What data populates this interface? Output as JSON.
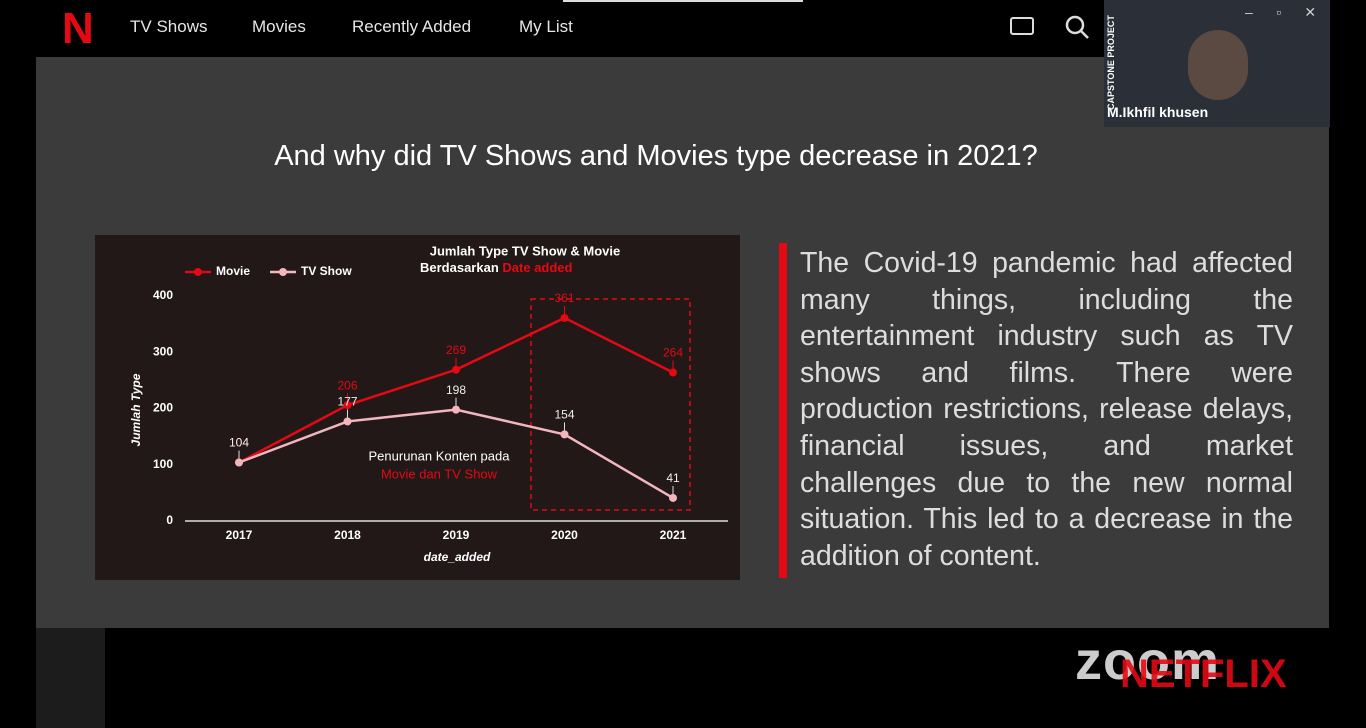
{
  "nav": {
    "logo": "N",
    "items": [
      "TV Shows",
      "Movies",
      "Recently Added",
      "My List"
    ]
  },
  "participant": {
    "name": "M.Ikhfil khusen",
    "tag": "CAPSTONE PROJECT"
  },
  "slide": {
    "title": "And why did TV Shows and Movies type decrease in 2021?",
    "body": "The Covid-19 pandemic had affected many things, including the entertainment industry such as TV shows and films. There were production restrictions, release delays, financial issues, and market challenges due to the new normal situation. This led to a decrease in the addition of content."
  },
  "watermark": [
    "zoom",
    "NETFLIX"
  ],
  "chart_data": {
    "type": "line",
    "title": "Jumlah Type TV Show & Movie",
    "subtitle": "Berdasarkan",
    "subtitle_highlight": "Date added",
    "annotation": [
      "Penurunan Konten pada",
      "Movie dan TV Show"
    ],
    "x_label": "date_added",
    "y_label": "Jumlah Type",
    "categories": [
      "2017",
      "2018",
      "2019",
      "2020",
      "2021"
    ],
    "series": [
      {
        "name": "Movie",
        "color": "#e50914",
        "values": [
          104,
          206,
          269,
          361,
          264
        ]
      },
      {
        "name": "TV Show",
        "color": "#f4b6bd",
        "values": [
          104,
          177,
          198,
          154,
          41
        ]
      }
    ],
    "ylim": [
      0,
      400
    ],
    "yticks": [
      0,
      100,
      200,
      300,
      400
    ],
    "legend": "top-left"
  }
}
